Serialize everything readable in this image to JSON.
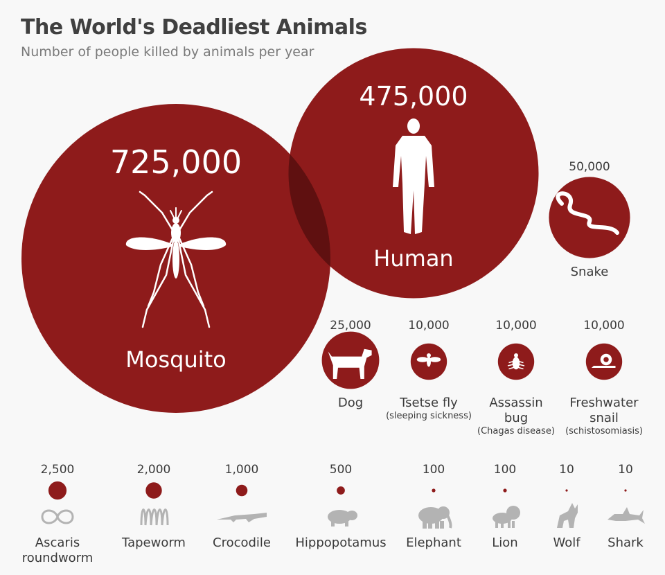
{
  "header": {
    "title": "The World's Deadliest Animals",
    "subtitle": "Number of people killed by animals per year"
  },
  "colors": {
    "bubble": "#8e1b1b",
    "overlap": "#5f1010",
    "icon_gray": "#b3b3b3",
    "text": "#3a3a3a",
    "background": "#f8f8f8"
  },
  "chart_data": {
    "type": "bubble",
    "title": "The World's Deadliest Animals",
    "subtitle": "Number of people killed by animals per year",
    "unit": "people killed per year",
    "series": [
      {
        "name": "Mosquito",
        "value_label": "725,000",
        "value": 725000,
        "icon": "mosquito-icon"
      },
      {
        "name": "Human",
        "value_label": "475,000",
        "value": 475000,
        "icon": "human-icon"
      },
      {
        "name": "Snake",
        "value_label": "50,000",
        "value": 50000,
        "icon": "snake-icon"
      },
      {
        "name": "Dog",
        "value_label": "25,000",
        "value": 25000,
        "icon": "dog-icon"
      },
      {
        "name": "Tsetse fly",
        "note": "(sleeping sickness)",
        "value_label": "10,000",
        "value": 10000,
        "icon": "fly-icon"
      },
      {
        "name": "Assassin bug",
        "note": "(Chagas disease)",
        "value_label": "10,000",
        "value": 10000,
        "icon": "bug-icon"
      },
      {
        "name": "Freshwater snail",
        "note": "(schistosomiasis)",
        "value_label": "10,000",
        "value": 10000,
        "icon": "snail-icon"
      },
      {
        "name": "Ascaris roundworm",
        "value_label": "2,500",
        "value": 2500,
        "icon": "roundworm-icon"
      },
      {
        "name": "Tapeworm",
        "value_label": "2,000",
        "value": 2000,
        "icon": "tapeworm-icon"
      },
      {
        "name": "Crocodile",
        "value_label": "1,000",
        "value": 1000,
        "icon": "crocodile-icon"
      },
      {
        "name": "Hippopotamus",
        "value_label": "500",
        "value": 500,
        "icon": "hippo-icon"
      },
      {
        "name": "Elephant",
        "value_label": "100",
        "value": 100,
        "icon": "elephant-icon"
      },
      {
        "name": "Lion",
        "value_label": "100",
        "value": 100,
        "icon": "lion-icon"
      },
      {
        "name": "Wolf",
        "value_label": "10",
        "value": 10,
        "icon": "wolf-icon"
      },
      {
        "name": "Shark",
        "value_label": "10",
        "value": 10,
        "icon": "shark-icon"
      }
    ]
  }
}
